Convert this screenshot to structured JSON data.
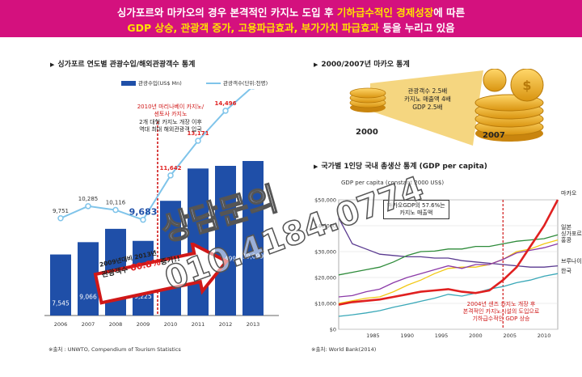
{
  "banner": {
    "line1_a": "싱가포르와 마카오의 경우 본격적인 카지노 도입 후 ",
    "line1_b": "기하급수적인 경제성장",
    "line1_c": "에 따른",
    "line2_a": "GDP 상승, 관광객 증가, 고용파급효과, 부가가치 파급효과",
    "line2_b": " 등을 누리고 있음"
  },
  "left": {
    "title": "싱가포르 연도별 관광수입/해외관광객수 통계",
    "legend_bar": "관광수입(US$ Mn)",
    "legend_line": "관광객수(단위:천명)",
    "annotation": [
      "2010년 마리나베이 카지노/",
      "센토사 카지노",
      "2개 대형 카지노 개장 이후",
      "역대 최대 해외관광객 입국"
    ],
    "arrow_line1": "2009년대비 2013년",
    "arrow_line2a": "관광객수 ",
    "arrow_line2b": "60.8%",
    "arrow_line2c": "증가!!",
    "source": "※출처 : UNWTO, Compendium of Tourism Statistics"
  },
  "macau": {
    "title": "2000/2007년 마카오 통계",
    "callout": [
      "관광객수 2.5배",
      "카지노 매출액 4배",
      "GDP 2.5배"
    ],
    "year_a": "2000",
    "year_b": "2007"
  },
  "gdp": {
    "title": "국가별 1인당 국내 총생산 통계 (GDP per capita)",
    "axis_title": "GDP per capita (constant 2000 US$)",
    "callout": [
      "마카오GDP의 57.6%는",
      "카지노 매출액"
    ],
    "annotation": [
      "2004년 샌즈 카지노 개장 후",
      "본격적인 카지노시설의 도입으로",
      "기하급수적인 GDP 상승"
    ],
    "source": "※출처: World Bank(2014)"
  },
  "watermark": {
    "line1": "상담문의",
    "line2": "010.4184.0774"
  },
  "colors": {
    "banner": "#d4117e",
    "bar": "#1f4fa8",
    "visitor_line": "#7fc4ea",
    "accent_red": "#e02020",
    "macau": "#e02020",
    "japan": "#2e8b3a",
    "singapore": "#f2c814",
    "hongkong": "#8b3aa8",
    "brunei": "#5a3a90",
    "korea": "#3aa8b8"
  },
  "chart_data": [
    {
      "type": "bar",
      "title": "싱가포르 연도별 관광수입/해외관광객수 통계",
      "categories": [
        "2006",
        "2007",
        "2008",
        "2009",
        "2010",
        "2011",
        "2012",
        "2013"
      ],
      "series": [
        {
          "name": "관광수입(US$ Mn)",
          "kind": "bar",
          "values": [
            7545,
            9066,
            10714,
            9225,
            14178,
            18171,
            18499,
            19099
          ]
        },
        {
          "name": "관광객수(단위:천명)",
          "kind": "line",
          "values": [
            9751,
            10285,
            10116,
            9683,
            11642,
            13171,
            14496,
            15568
          ]
        }
      ]
    },
    {
      "type": "line",
      "title": "국가별 1인당 국내 총생산 통계 (GDP per capita)",
      "ylabel": "GDP per capita (constant 2000 US$)",
      "x": [
        1980,
        1982,
        1984,
        1986,
        1988,
        1990,
        1992,
        1994,
        1996,
        1998,
        2000,
        2002,
        2004,
        2006,
        2008,
        2010,
        2012
      ],
      "x_ticks": [
        "1985",
        "1990",
        "1995",
        "2000",
        "2005",
        "2010"
      ],
      "y_ticks": [
        "$0",
        "$10,000",
        "$20,000",
        "$30,000",
        "$40,000",
        "$50,000"
      ],
      "ylim": [
        0,
        50000
      ],
      "series": [
        {
          "name": "마카오",
          "color": "#e02020",
          "values": [
            9500,
            10500,
            11000,
            11500,
            12500,
            13500,
            14500,
            15000,
            15500,
            14500,
            14000,
            15000,
            19000,
            24000,
            32000,
            40000,
            50000
          ]
        },
        {
          "name": "일본",
          "color": "#2e8b3a",
          "values": [
            21000,
            22000,
            23000,
            24000,
            26000,
            28500,
            30000,
            30200,
            31000,
            31000,
            32000,
            32000,
            33000,
            34000,
            34500,
            35000,
            36500
          ]
        },
        {
          "name": "싱가포르",
          "color": "#f2c814",
          "values": [
            10000,
            11000,
            12000,
            12500,
            14500,
            17000,
            19000,
            21500,
            23500,
            24000,
            24000,
            25000,
            27000,
            30000,
            31000,
            33000,
            34500
          ]
        },
        {
          "name": "홍콩",
          "color": "#8b3aa8",
          "values": [
            12500,
            13000,
            14500,
            15500,
            18000,
            20000,
            21500,
            23000,
            24500,
            23500,
            25000,
            25000,
            27000,
            29500,
            30500,
            31500,
            33000
          ]
        },
        {
          "name": "브루나이",
          "color": "#5a3a90",
          "values": [
            43000,
            33000,
            31000,
            29000,
            28500,
            28000,
            28000,
            27500,
            27500,
            26500,
            26000,
            25500,
            25000,
            24500,
            24000,
            24000,
            24500
          ]
        },
        {
          "name": "한국",
          "color": "#3aa8b8",
          "values": [
            5000,
            5600,
            6300,
            7200,
            8500,
            9600,
            10800,
            12000,
            13500,
            12800,
            14000,
            15500,
            16500,
            18000,
            19000,
            20500,
            21500
          ]
        }
      ]
    }
  ]
}
